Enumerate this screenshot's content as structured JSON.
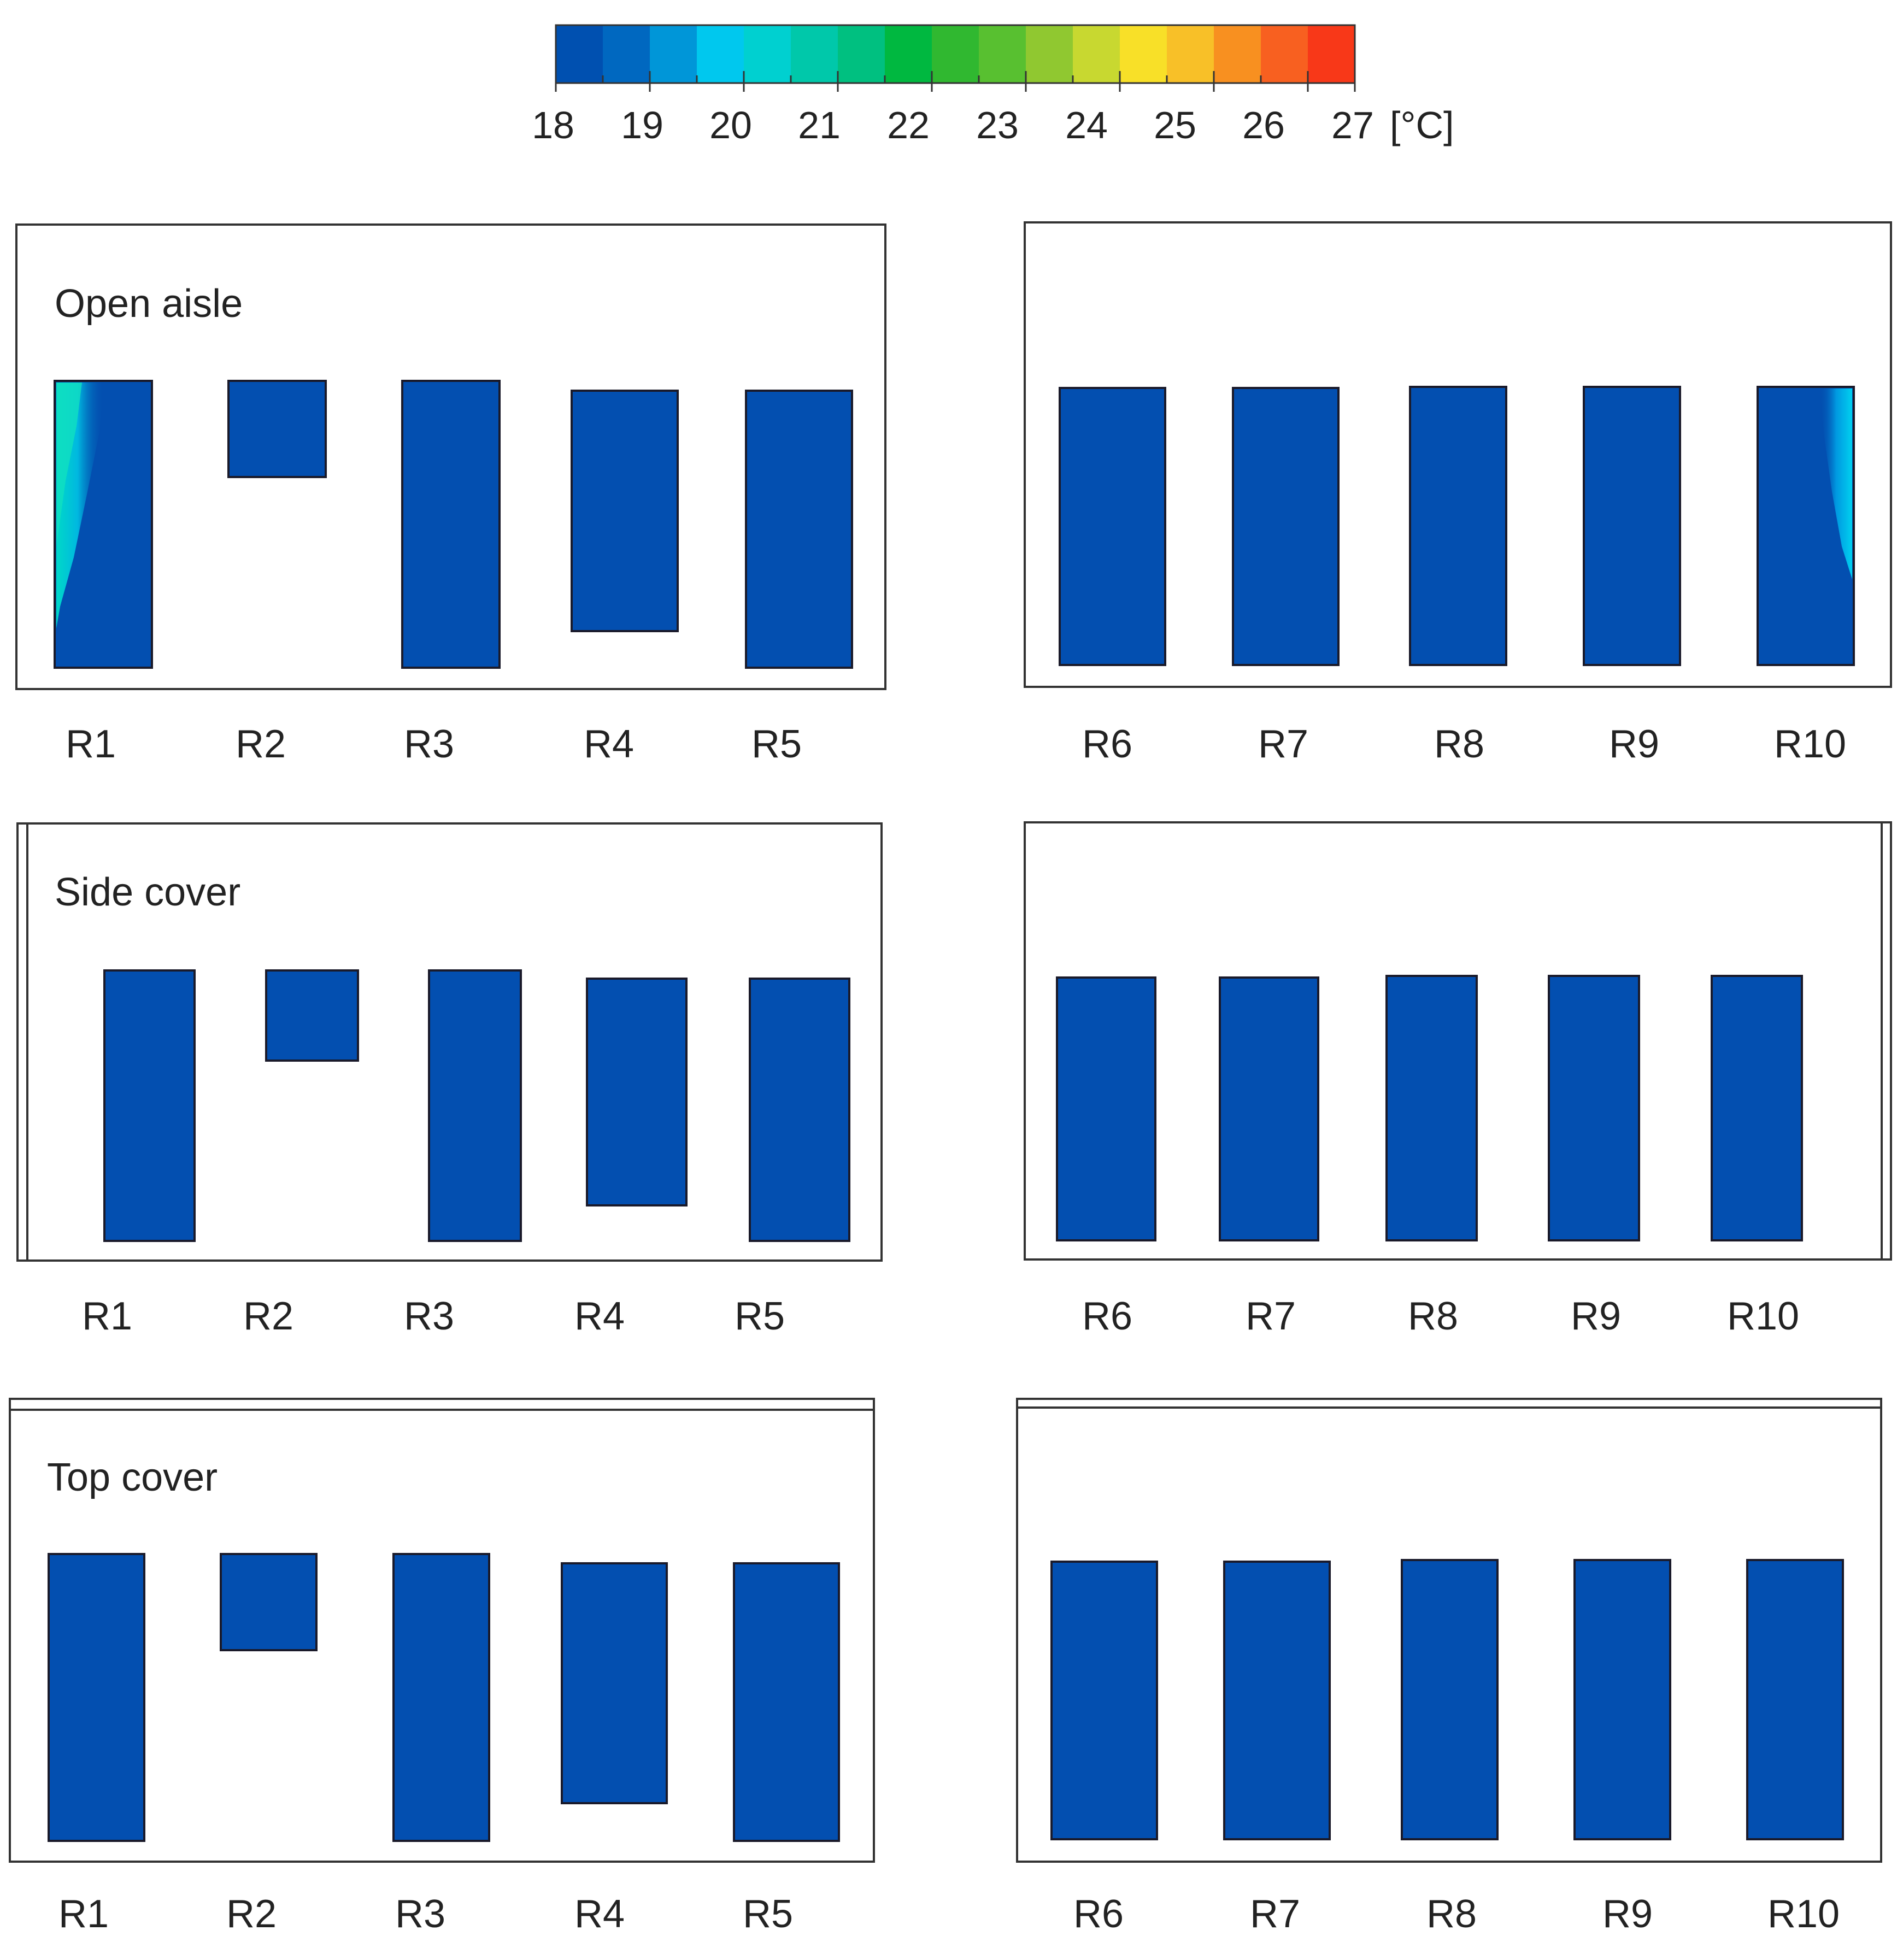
{
  "colorbar": {
    "ticks": [
      "18",
      "19",
      "20",
      "21",
      "22",
      "23",
      "24",
      "25",
      "26",
      "27"
    ],
    "unit": "[°C]",
    "colors": [
      "#0050b0",
      "#0068c0",
      "#0096d8",
      "#00c8ee",
      "#00d0d0",
      "#00c8aa",
      "#00c080",
      "#00b840",
      "#30b830",
      "#58c030",
      "#90c830",
      "#c8d830",
      "#f8e028",
      "#f8c028",
      "#f89020",
      "#f86020",
      "#f83818"
    ]
  },
  "rack_fill": "#034fb0",
  "panels": [
    {
      "id": "open-aisle-left",
      "title": "Open aisle",
      "labels": [
        "R1",
        "R2",
        "R3",
        "R4",
        "R5"
      ]
    },
    {
      "id": "open-aisle-right",
      "title": "",
      "labels": [
        "R6",
        "R7",
        "R8",
        "R9",
        "R10"
      ]
    },
    {
      "id": "side-cover-left",
      "title": "Side cover",
      "labels": [
        "R1",
        "R2",
        "R3",
        "R4",
        "R5"
      ]
    },
    {
      "id": "side-cover-right",
      "title": "",
      "labels": [
        "R6",
        "R7",
        "R8",
        "R9",
        "R10"
      ]
    },
    {
      "id": "top-cover-left",
      "title": "Top cover",
      "labels": [
        "R1",
        "R2",
        "R3",
        "R4",
        "R5"
      ]
    },
    {
      "id": "top-cover-right",
      "title": "",
      "labels": [
        "R6",
        "R7",
        "R8",
        "R9",
        "R10"
      ]
    }
  ]
}
